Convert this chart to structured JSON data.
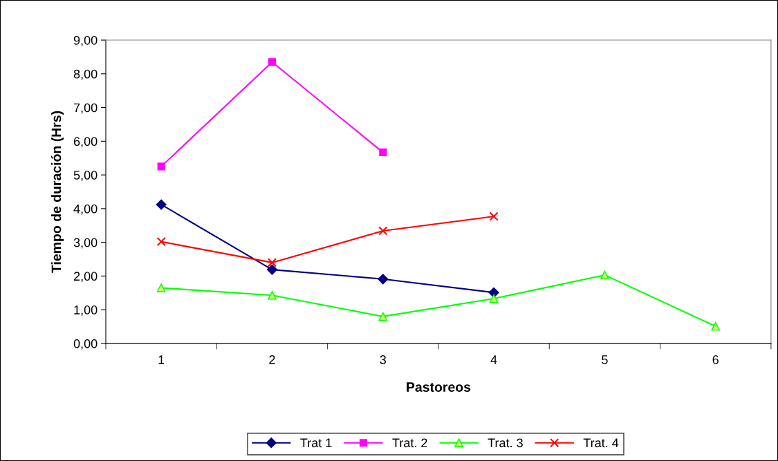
{
  "chart_data": {
    "type": "line",
    "xlabel": "Pastoreos",
    "ylabel": "Tiempo de duración (Hrs)",
    "categories": [
      "1",
      "2",
      "3",
      "4",
      "5",
      "6"
    ],
    "series": [
      {
        "name": "Trat 1",
        "color": "#000080",
        "marker": "diamond",
        "values": [
          4.12,
          2.19,
          1.91,
          1.51,
          null,
          null
        ]
      },
      {
        "name": "Trat. 2",
        "color": "#ff00ff",
        "marker": "square",
        "values": [
          5.25,
          8.35,
          5.67,
          null,
          null,
          null
        ]
      },
      {
        "name": "Trat. 3",
        "color": "#00ff00",
        "marker": "triangle",
        "values": [
          1.65,
          1.43,
          0.8,
          1.33,
          2.03,
          0.51
        ]
      },
      {
        "name": "Trat. 4",
        "color": "#ff0000",
        "marker": "cross",
        "values": [
          3.02,
          2.4,
          3.34,
          3.77,
          null,
          null
        ]
      }
    ],
    "ylim": [
      0,
      9
    ],
    "yticks": [
      {
        "value": 0,
        "label": "0,00"
      },
      {
        "value": 1,
        "label": "1,00"
      },
      {
        "value": 2,
        "label": "2,00"
      },
      {
        "value": 3,
        "label": "3,00"
      },
      {
        "value": 4,
        "label": "4,00"
      },
      {
        "value": 5,
        "label": "5,00"
      },
      {
        "value": 6,
        "label": "6,00"
      },
      {
        "value": 7,
        "label": "7,00"
      },
      {
        "value": 8,
        "label": "8,00"
      },
      {
        "value": 9,
        "label": "9,00"
      }
    ],
    "grid": false,
    "legend": "bottom"
  }
}
